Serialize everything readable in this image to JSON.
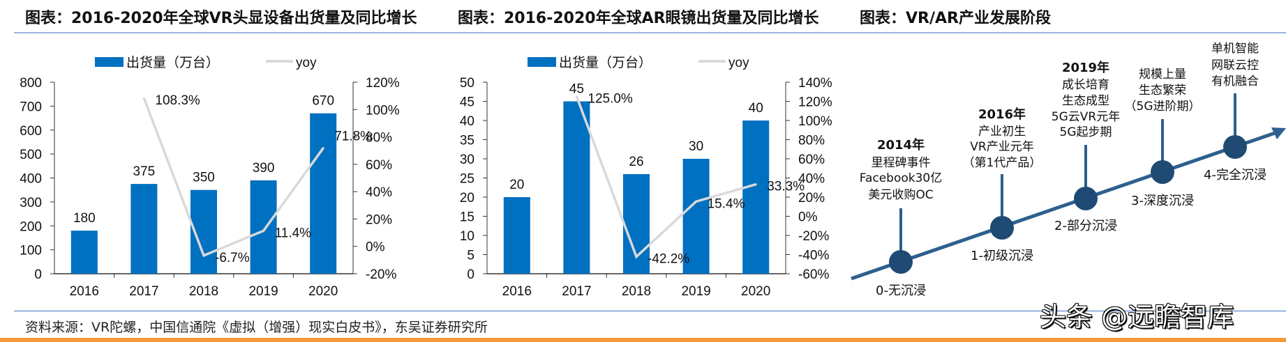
{
  "colors": {
    "bar": "#0070c0",
    "yoy_line": "#d9d9d9",
    "timeline": "#2e5f8f",
    "node": "#1f4a73",
    "accent_orange": "#f7993a",
    "rule_blue": "#4472c4"
  },
  "charts": [
    {
      "title": "图表：2016-2020年全球VR头显设备出货量及同比增长"
    },
    {
      "title": "图表：2016-2020年全球AR眼镜出货量及同比增长"
    }
  ],
  "chart_data": [
    {
      "type": "bar+line",
      "title": "图表：2016-2020年全球VR头显设备出货量及同比增长",
      "categories": [
        "2016",
        "2017",
        "2018",
        "2019",
        "2020"
      ],
      "series": [
        {
          "name": "出货量（万台）",
          "type": "bar",
          "axis": "left",
          "values": [
            180,
            375,
            350,
            390,
            670
          ],
          "labels": [
            "180",
            "375",
            "350",
            "390",
            "670"
          ]
        },
        {
          "name": "yoy",
          "type": "line",
          "axis": "right",
          "values": [
            null,
            108.3,
            -6.7,
            11.4,
            71.8
          ],
          "labels": [
            "",
            "108.3%",
            "-6.7%",
            "11.4%",
            "71.8%"
          ]
        }
      ],
      "left_axis": {
        "range": [
          0,
          800
        ],
        "ticks": [
          "0",
          "100",
          "200",
          "300",
          "400",
          "500",
          "600",
          "700",
          "800"
        ]
      },
      "right_axis": {
        "range": [
          -20,
          120
        ],
        "ticks": [
          "-20%",
          "0%",
          "20%",
          "40%",
          "60%",
          "80%",
          "100%",
          "120%"
        ]
      },
      "legend": "top",
      "grid": false
    },
    {
      "type": "bar+line",
      "title": "图表：2016-2020年全球AR眼镜出货量及同比增长",
      "categories": [
        "2016",
        "2017",
        "2018",
        "2019",
        "2020"
      ],
      "series": [
        {
          "name": "出货量（万台）",
          "type": "bar",
          "axis": "left",
          "values": [
            20,
            45,
            26,
            30,
            40
          ],
          "labels": [
            "20",
            "45",
            "26",
            "30",
            "40"
          ]
        },
        {
          "name": "yoy",
          "type": "line",
          "axis": "right",
          "values": [
            null,
            125.0,
            -42.2,
            15.4,
            33.3
          ],
          "labels": [
            "",
            "125.0%",
            "-42.2%",
            "15.4%",
            "33.3%"
          ]
        }
      ],
      "left_axis": {
        "range": [
          0,
          50
        ],
        "ticks": [
          "0",
          "5",
          "10",
          "15",
          "20",
          "25",
          "30",
          "35",
          "40",
          "45",
          "50"
        ]
      },
      "right_axis": {
        "range": [
          -60,
          140
        ],
        "ticks": [
          "-60%",
          "-40%",
          "-20%",
          "0%",
          "20%",
          "40%",
          "60%",
          "80%",
          "100%",
          "120%",
          "140%"
        ]
      },
      "legend": "top",
      "grid": false
    }
  ],
  "diagram": {
    "title": "图表：VR/AR产业发展阶段",
    "stages": [
      {
        "label": "0-无沉浸",
        "note": [
          "2014年",
          "里程碑事件",
          "Facebook30亿",
          "美元收购OC"
        ]
      },
      {
        "label": "1-初级沉浸",
        "note": [
          "2016年",
          "产业初生",
          "VR产业元年",
          "（第1代产品）"
        ]
      },
      {
        "label": "2-部分沉浸",
        "note": [
          "2019年",
          "成长培育",
          "生态成型",
          "5G云VR元年",
          "5G起步期"
        ]
      },
      {
        "label": "3-深度沉浸",
        "note": [
          "规模上量",
          "生态繁荣",
          "（5G进阶期）"
        ]
      },
      {
        "label": "4-完全沉浸",
        "note": [
          "单机智能",
          "网联云控",
          "有机融合"
        ]
      }
    ]
  },
  "footer": {
    "source": "资料来源：VR陀螺，中国信通院《虚拟（增强）现实白皮书》，东吴证券研究所",
    "watermark": "头条 @远瞻智库"
  }
}
